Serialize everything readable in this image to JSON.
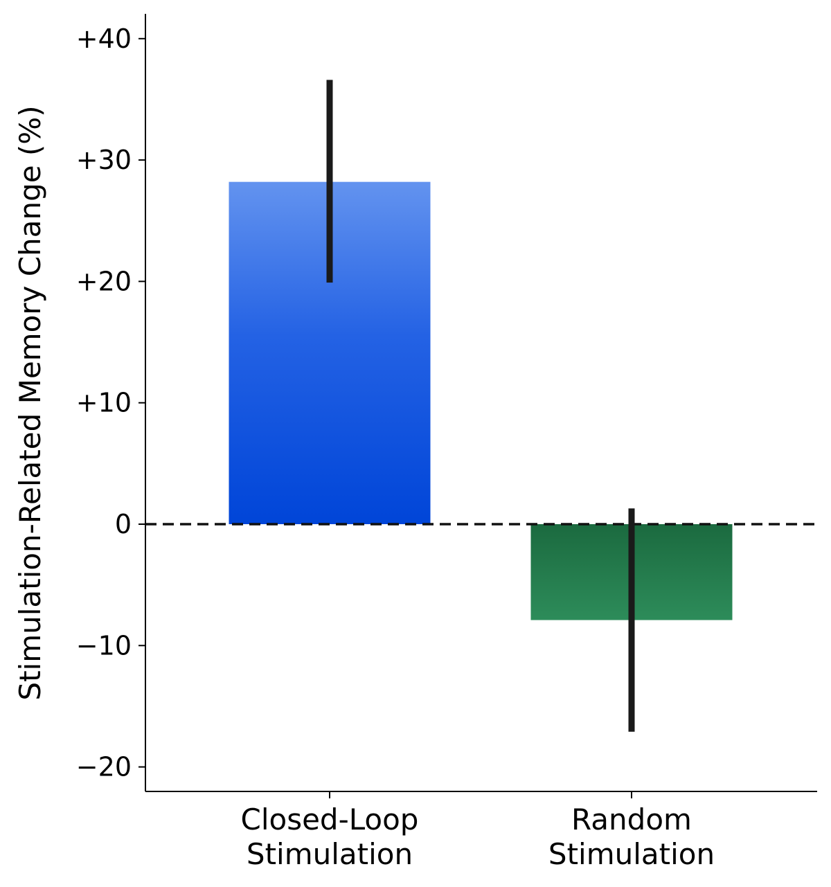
{
  "chart_data": {
    "type": "bar",
    "title": "",
    "xlabel": "",
    "ylabel": "Stimulation-Related Memory Change (%)",
    "ylim": [
      -22,
      42
    ],
    "yticks": [
      40,
      30,
      20,
      10,
      0,
      -10,
      -20
    ],
    "ytick_labels": [
      "+40",
      "+30",
      "+20",
      "+10",
      "0",
      "−10",
      "−20"
    ],
    "categories": [
      [
        "Closed-Loop",
        "Stimulation"
      ],
      [
        "Random",
        "Stimulation"
      ]
    ],
    "values": [
      28.2,
      -7.9
    ],
    "error_low": [
      19.9,
      -17.1
    ],
    "error_high": [
      36.6,
      1.3
    ],
    "colors": {
      "closed_loop_top": "#6393ef",
      "closed_loop_bottom": "#0045d8",
      "random_top": "#1b6a3f",
      "random_bottom": "#2d8c5a",
      "error_bar": "#1a1a1a"
    },
    "reference_line": {
      "y": 0,
      "style": "dashed"
    },
    "grid": false,
    "legend": "none"
  }
}
